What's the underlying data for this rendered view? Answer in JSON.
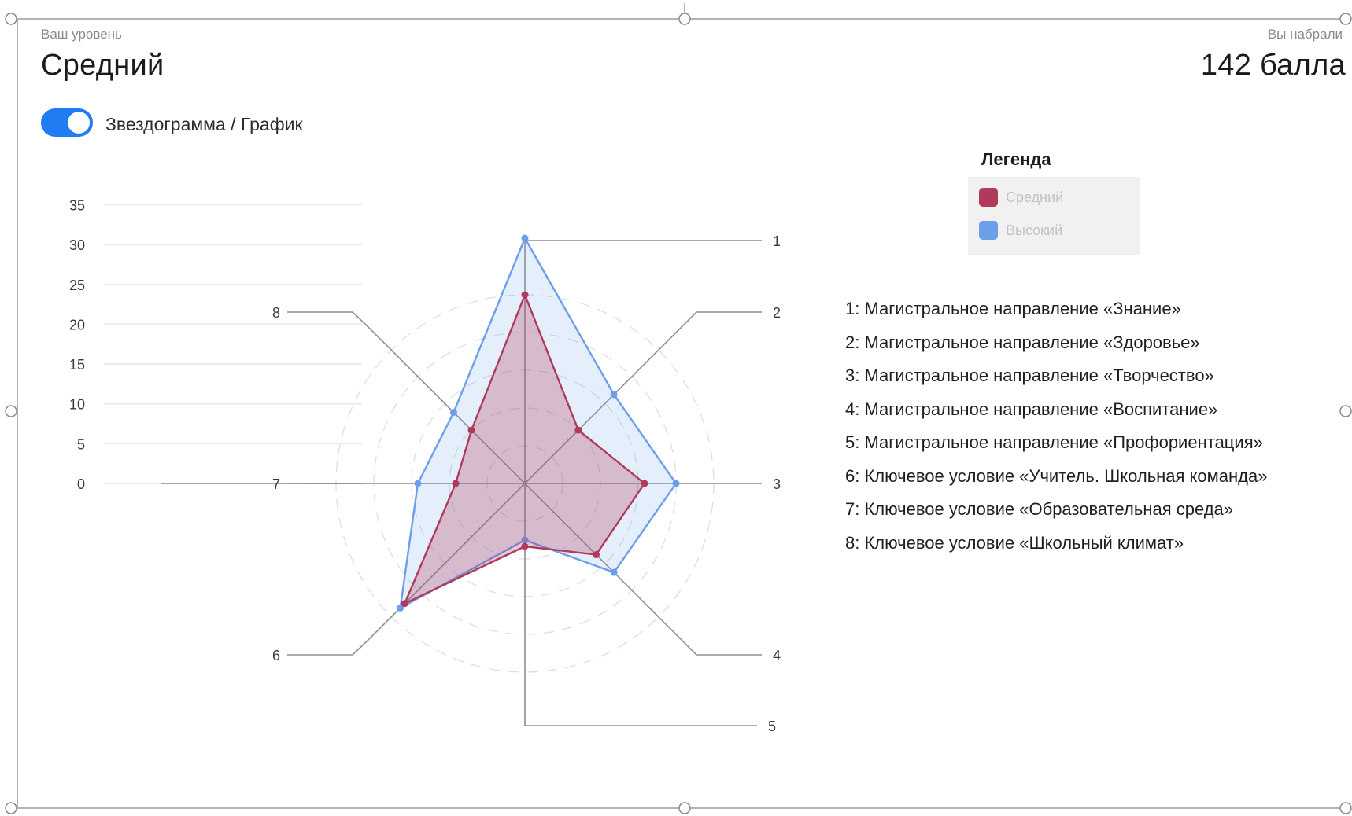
{
  "header": {
    "level_caption": "Ваш уровень",
    "level_value": "Средний",
    "score_caption": "Вы набрали",
    "score_value": "142 балла"
  },
  "toggle": {
    "label": "Звездограмма / График",
    "state": "on",
    "color": "#1f7cf2"
  },
  "legend": {
    "title": "Легенда",
    "items": [
      {
        "label": "Средний",
        "color": "#b03a5b"
      },
      {
        "label": "Высокий",
        "color": "#6d9eea"
      }
    ]
  },
  "directions": [
    "1: Магистральное направление «Знание»",
    "2: Магистральное направление «Здоровье»",
    "3: Магистральное направление «Творчество»",
    "4: Магистральное направление «Воспитание»",
    "5: Магистральное направление «Профориентация»",
    "6: Ключевое условие «Учитель. Школьная команда»",
    "7: Ключевое условие «Образовательная среда»",
    "8: Ключевое условие «Школьный климат»"
  ],
  "chart_data": {
    "type": "radar",
    "categories": [
      "1",
      "2",
      "3",
      "4",
      "5",
      "6",
      "7",
      "8"
    ],
    "series": [
      {
        "name": "Средний",
        "values": [
          30,
          12,
          19,
          16,
          10,
          27,
          11,
          12
        ],
        "color": "#b03a5b"
      },
      {
        "name": "Высокий",
        "values": [
          39,
          20,
          24,
          20,
          9,
          28,
          17,
          16
        ],
        "color": "#6d9eea"
      }
    ],
    "ylim": [
      0,
      35
    ],
    "y_ticks": [
      0,
      5,
      10,
      15,
      20,
      25,
      30,
      35
    ],
    "grid": true
  }
}
